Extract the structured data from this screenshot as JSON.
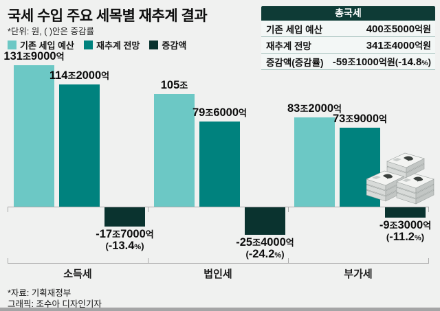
{
  "title": "국세 수입 주요 세목별 재추계 결과",
  "unit_note": "*단위: 원, ( )안은 증감률",
  "legend": [
    {
      "label": "기존 세입 예산",
      "color": "#6cc8c5"
    },
    {
      "label": "재추계 전망",
      "color": "#00827e"
    },
    {
      "label": "증감액",
      "color": "#0a332f"
    }
  ],
  "summary_table": {
    "title": "총국세",
    "rows": [
      {
        "label": "기존 세입 예산",
        "value": "400조5000억원"
      },
      {
        "label": "재추계 전망",
        "value": "341조4000억원"
      },
      {
        "label": "증감액(증감률)",
        "value": "-59조1000억원(-14.8%)"
      }
    ]
  },
  "chart_data": {
    "type": "bar",
    "unit": "조원 (trillion KRW)",
    "categories": [
      "소득세",
      "법인세",
      "부가세"
    ],
    "series": [
      {
        "name": "기존 세입 예산",
        "color": "#6cc8c5",
        "values": [
          131.9,
          105,
          83.2
        ],
        "labels": [
          "131조9000억",
          "105조",
          "83조2000억"
        ]
      },
      {
        "name": "재추계 전망",
        "color": "#00827e",
        "values": [
          114.2,
          79.6,
          73.9
        ],
        "labels": [
          "114조2000억",
          "79조6000억",
          "73조9000억"
        ]
      },
      {
        "name": "증감액",
        "color": "#0a332f",
        "values": [
          -17.7,
          -25.4,
          -9.3
        ],
        "labels": [
          "-17조7000억",
          "-25조4000억",
          "-9조3000억"
        ],
        "pct_labels": [
          "(-13.4%)",
          "(-24.2%)",
          "(-11.2%)"
        ]
      }
    ],
    "ylim": [
      -30,
      140
    ],
    "grid": false,
    "legend_position": "top-left"
  },
  "source": "*자료: 기획재정부",
  "credit": "그래픽: 조수아 디자인기자"
}
